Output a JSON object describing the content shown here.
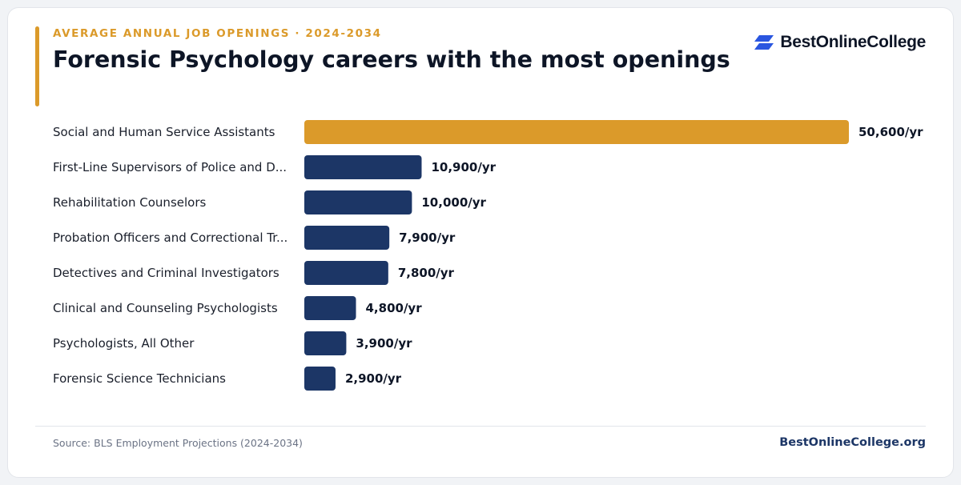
{
  "header": {
    "kicker": "AVERAGE ANNUAL JOB OPENINGS · 2024-2034",
    "title": "Forensic Psychology careers with the most openings"
  },
  "brand": {
    "name": "BestOnlineCollege",
    "logo_icon": "double-parallelogram-logo-icon",
    "logo_color": "#2a56e0"
  },
  "footer": {
    "source": "Source: BLS Employment Projections (2024-2034)",
    "site": "BestOnlineCollege.org"
  },
  "colors": {
    "highlight": "#db9a2a",
    "bar": "#1c3666",
    "label": "#1a1f2b",
    "value": "#0d1526"
  },
  "chart_data": {
    "type": "bar",
    "orientation": "horizontal",
    "value_suffix": "/yr",
    "categories": [
      "Social and Human Service Assistants",
      "First-Line Supervisors of Police and D...",
      "Rehabilitation Counselors",
      "Probation Officers and Correctional Tr...",
      "Detectives and Criminal Investigators",
      "Clinical and Counseling Psychologists",
      "Psychologists, All Other",
      "Forensic Science Technicians"
    ],
    "values": [
      50600,
      10900,
      10000,
      7900,
      7800,
      4800,
      3900,
      2900
    ],
    "value_labels": [
      "50,600/yr",
      "10,900/yr",
      "10,000/yr",
      "7,900/yr",
      "7,800/yr",
      "4,800/yr",
      "3,900/yr",
      "2,900/yr"
    ],
    "highlight_index": 0,
    "xlim": [
      0,
      50600
    ],
    "grid": false,
    "legend": "none"
  }
}
